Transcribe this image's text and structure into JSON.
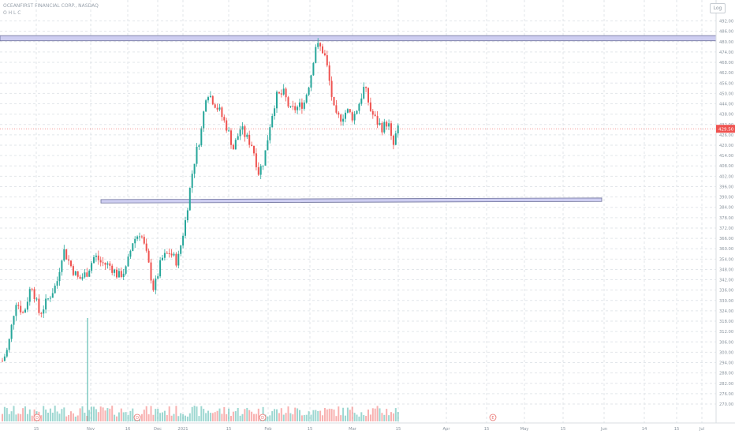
{
  "header": {
    "symbol_line": "OCEANFIRST FINANCIAL CORP., NASDAQ",
    "sub_line": "O H L C"
  },
  "toolbar": {
    "log_label": "Log"
  },
  "price_badge": "429.50",
  "colors": {
    "up": "#26a69a",
    "down": "#ef5350",
    "band_fill": "#c5c6ee",
    "band_stroke": "#6c6f9a",
    "grid": "#e2e6ea",
    "badge": "#ef5350",
    "marker": "#e8706d"
  },
  "chart_data": {
    "type": "candlestick",
    "y_axis_labels": [
      "492.00",
      "486.00",
      "480.00",
      "474.00",
      "468.00",
      "462.00",
      "456.00",
      "450.00",
      "444.00",
      "438.00",
      "432.00",
      "426.00",
      "420.00",
      "414.00",
      "408.00",
      "402.00",
      "396.00",
      "390.00",
      "384.00",
      "378.00",
      "372.00",
      "366.00",
      "360.00",
      "354.00",
      "348.00",
      "342.00",
      "336.00",
      "330.00",
      "324.00",
      "318.00",
      "312.00",
      "306.00",
      "300.00",
      "294.00",
      "288.00",
      "282.00",
      "276.00",
      "270.00"
    ],
    "x_axis_labels": [
      "15",
      "Nov",
      "16",
      "Dec",
      "2021",
      "15",
      "Feb",
      "15",
      "Mar",
      "15",
      "Apr",
      "15",
      "May",
      "15",
      "Jun",
      "14",
      "15",
      "Jul"
    ],
    "ylim": [
      270,
      495
    ],
    "last_price": 429.5,
    "resistance_band": [
      480.5,
      483.5
    ],
    "support_band": [
      386.5,
      388.5
    ],
    "events": [
      "D",
      "D",
      "D",
      "E"
    ],
    "grid": true
  }
}
